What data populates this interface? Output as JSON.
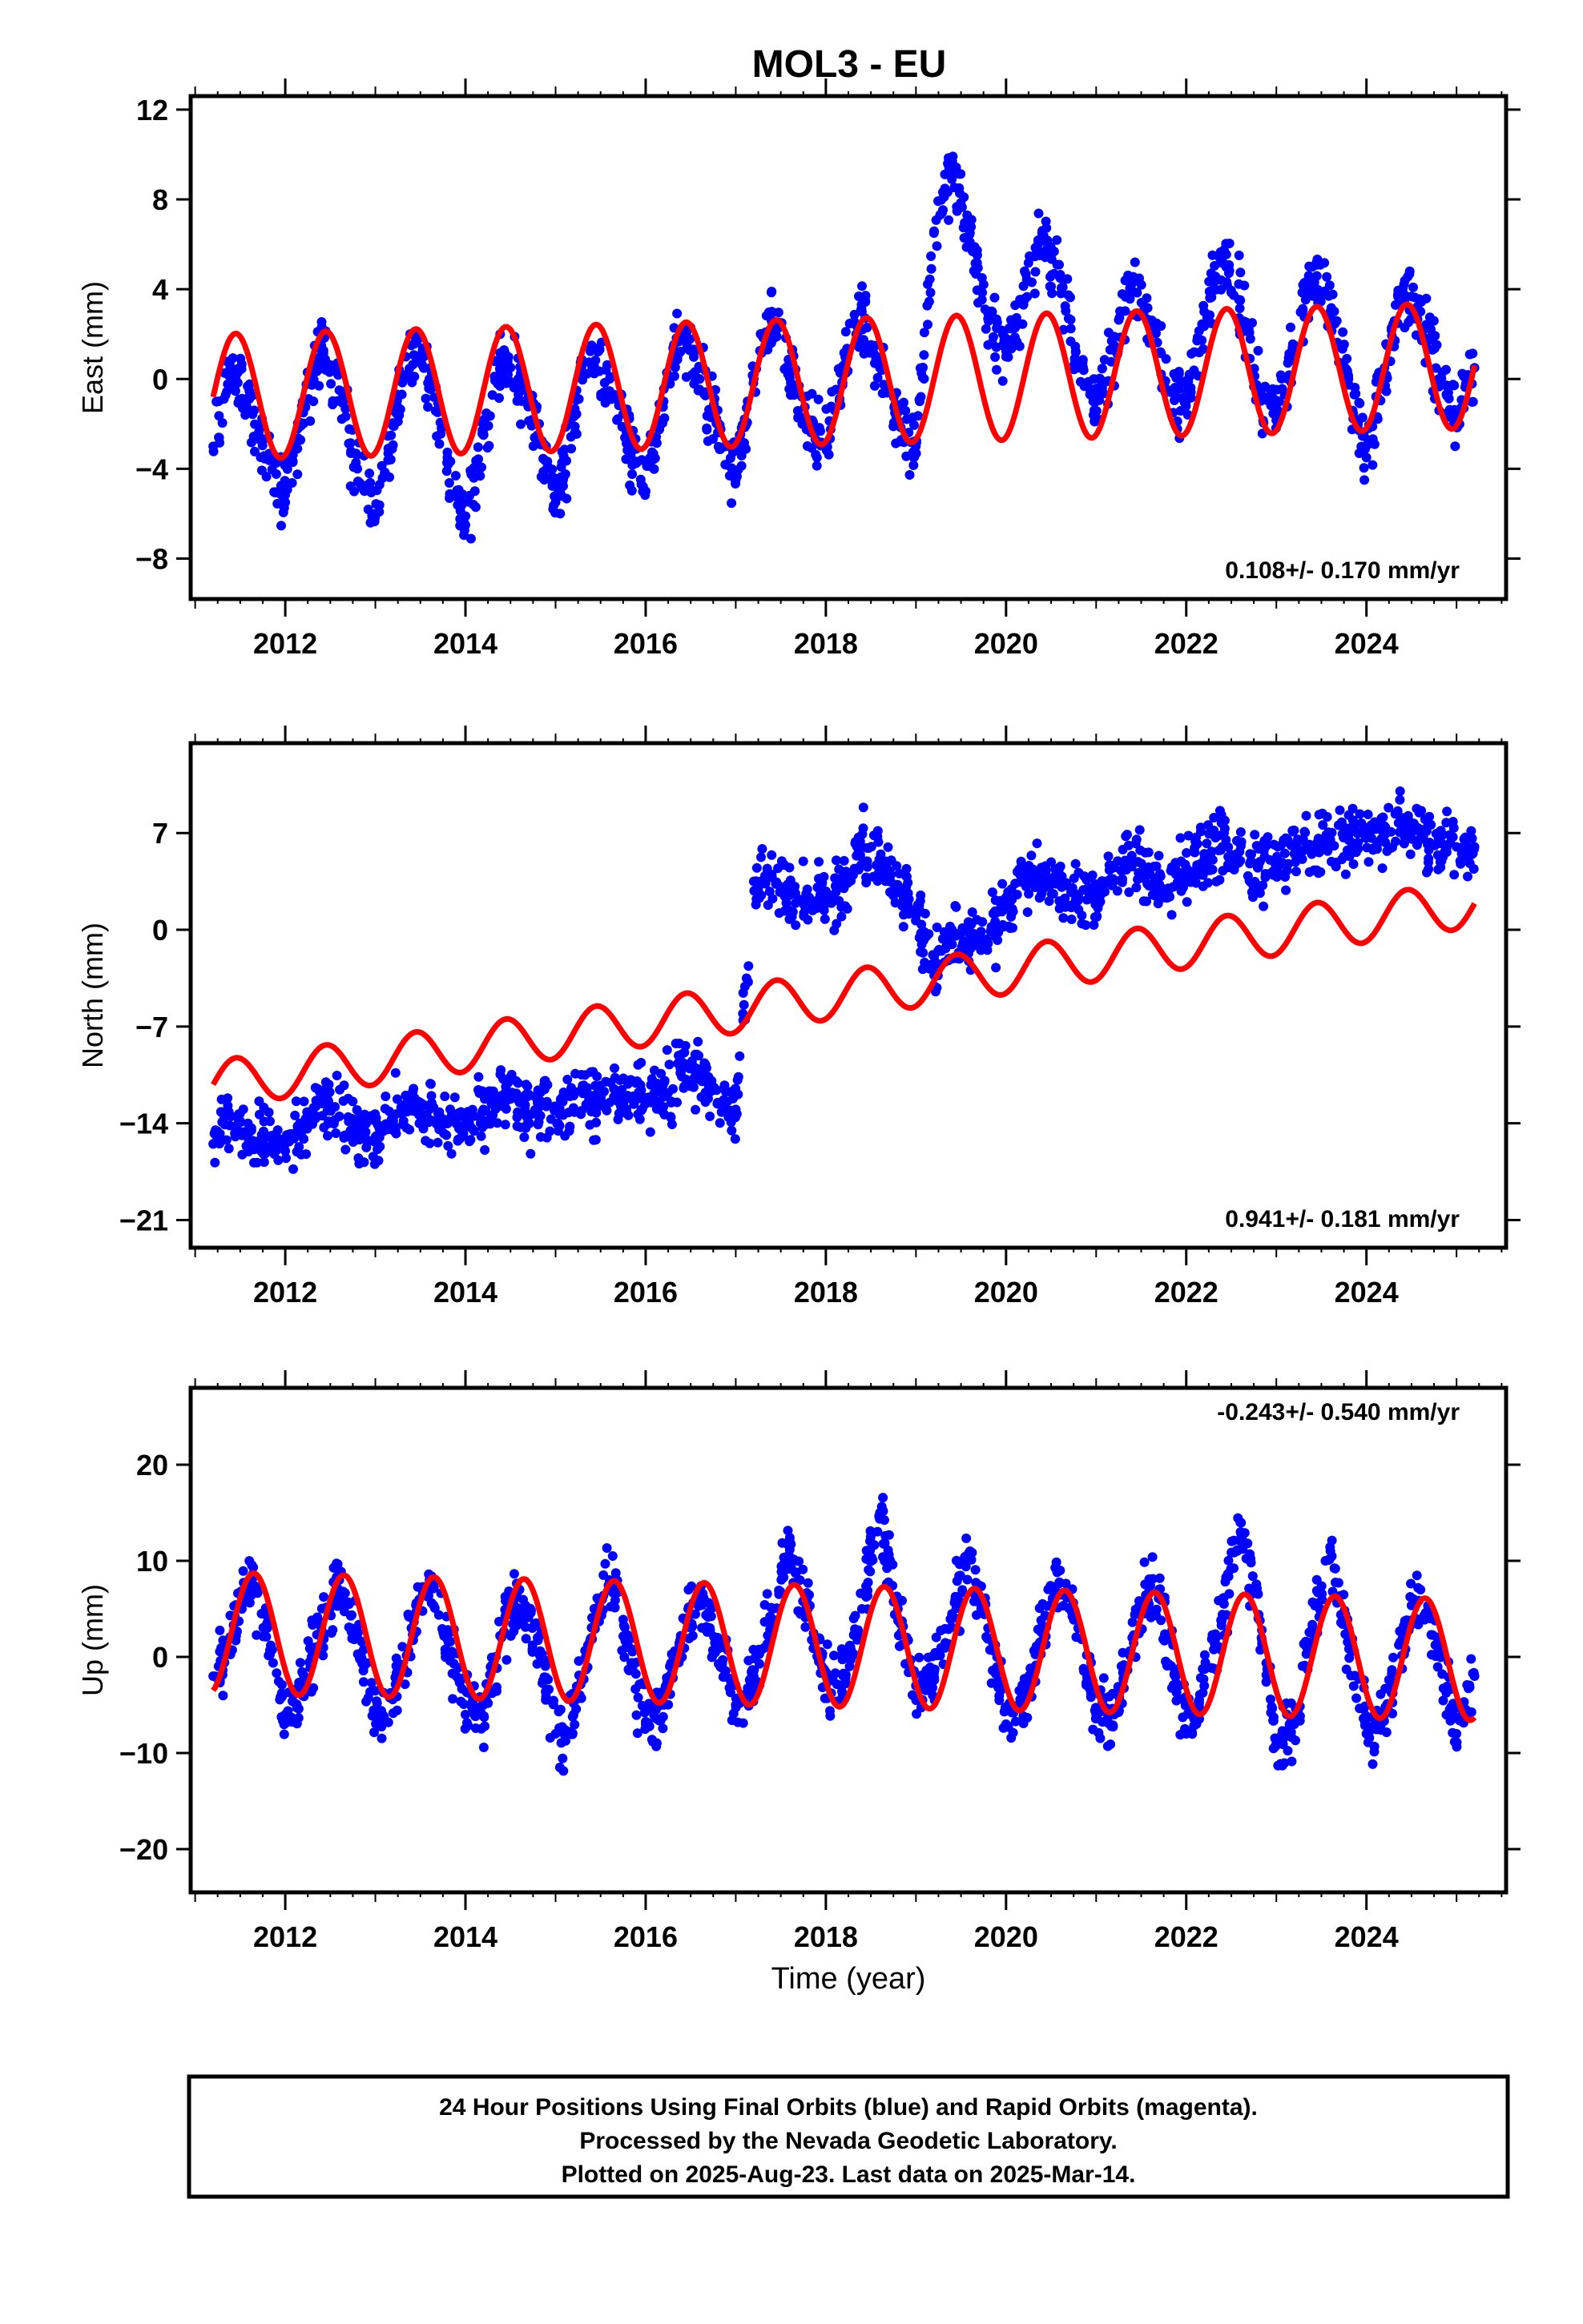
{
  "title": "MOL3 - EU",
  "footer": {
    "lines": [
      "24 Hour Positions Using Final Orbits (blue) and Rapid Orbits (magenta).",
      "Processed by the Nevada Geodetic Laboratory.",
      "Plotted on 2025-Aug-23. Last data on 2025-Mar-14."
    ]
  },
  "colors": {
    "data": "#0000ff",
    "model": "#ff0000",
    "frame": "#000000"
  },
  "chart_data": [
    {
      "type": "scatter",
      "ylabel": "East (mm)",
      "xlabel": "",
      "rate_label": "0.108+/- 0.170 mm/yr",
      "rate_position": "bottom-right",
      "xlim": [
        2010.95,
        2025.55
      ],
      "ylim": [
        -9.8,
        12.6
      ],
      "xticks": [
        2012,
        2014,
        2016,
        2018,
        2020,
        2022,
        2024
      ],
      "yticks": [
        12,
        8,
        4,
        0,
        -4,
        -8
      ],
      "ytick_labels": [
        "12",
        "8",
        "4",
        "0",
        "−4",
        "−8"
      ],
      "grid": false,
      "series": [
        {
          "role": "daily positions",
          "x": [
            2011.2,
            2011.4,
            2011.6,
            2011.8,
            2012.0,
            2012.2,
            2012.4,
            2012.6,
            2012.8,
            2013.0,
            2013.2,
            2013.4,
            2013.6,
            2013.8,
            2014.0,
            2014.2,
            2014.4,
            2014.6,
            2014.8,
            2015.0,
            2015.2,
            2015.4,
            2015.6,
            2015.8,
            2016.0,
            2016.2,
            2016.4,
            2016.6,
            2016.8,
            2017.0,
            2017.2,
            2017.4,
            2017.6,
            2017.8,
            2018.0,
            2018.2,
            2018.4,
            2018.6,
            2018.8,
            2019.0,
            2019.2,
            2019.4,
            2019.6,
            2019.8,
            2020.0,
            2020.2,
            2020.4,
            2020.6,
            2020.8,
            2021.0,
            2021.2,
            2021.4,
            2021.6,
            2021.8,
            2022.0,
            2022.2,
            2022.4,
            2022.6,
            2022.8,
            2023.0,
            2023.2,
            2023.4,
            2023.6,
            2023.8,
            2024.0,
            2024.2,
            2024.4,
            2024.6,
            2024.8,
            2025.0,
            2025.2
          ],
          "y": [
            -3.0,
            0.5,
            -0.8,
            -3.5,
            -5.5,
            -1.5,
            1.5,
            -0.5,
            -4.0,
            -6.0,
            -2.0,
            1.5,
            0.0,
            -3.5,
            -6.5,
            -2.5,
            1.0,
            0.0,
            -2.5,
            -5.5,
            -1.5,
            1.5,
            0.0,
            -2.5,
            -5.0,
            -1.0,
            2.0,
            0.0,
            -2.0,
            -4.5,
            0.0,
            3.0,
            0.5,
            -2.0,
            -3.0,
            0.5,
            3.0,
            0.5,
            -2.0,
            -3.0,
            6.5,
            9.5,
            6.5,
            3.0,
            1.0,
            3.5,
            6.5,
            4.5,
            0.5,
            -1.0,
            1.5,
            4.5,
            2.5,
            -0.5,
            -1.0,
            3.0,
            5.5,
            3.5,
            -0.5,
            -1.5,
            1.5,
            5.0,
            3.0,
            0.0,
            -3.5,
            0.5,
            4.0,
            3.0,
            0.0,
            -1.5,
            0.5
          ]
        },
        {
          "role": "seasonal model",
          "amplitude": 2.8,
          "phase_peak": 0.45,
          "offset_start": -0.8,
          "offset_end": 0.6
        }
      ]
    },
    {
      "type": "scatter",
      "ylabel": "North (mm)",
      "xlabel": "",
      "rate_label": "0.941+/- 0.181 mm/yr",
      "rate_position": "bottom-right",
      "xlim": [
        2010.95,
        2025.55
      ],
      "ylim": [
        -23.0,
        13.5
      ],
      "xticks": [
        2012,
        2014,
        2016,
        2018,
        2020,
        2022,
        2024
      ],
      "yticks": [
        7,
        0,
        -7,
        -14,
        -21
      ],
      "ytick_labels": [
        "7",
        "0",
        "−7",
        "−14",
        "−21"
      ],
      "grid": false,
      "series": [
        {
          "role": "daily positions",
          "x": [
            2011.2,
            2011.4,
            2011.6,
            2011.8,
            2012.0,
            2012.2,
            2012.4,
            2012.6,
            2012.8,
            2013.0,
            2013.2,
            2013.4,
            2013.6,
            2013.8,
            2014.0,
            2014.2,
            2014.4,
            2014.6,
            2014.8,
            2015.0,
            2015.2,
            2015.4,
            2015.6,
            2015.8,
            2016.0,
            2016.2,
            2016.4,
            2016.6,
            2016.8,
            2017.0,
            2017.2,
            2017.4,
            2017.6,
            2017.8,
            2018.0,
            2018.2,
            2018.4,
            2018.6,
            2018.8,
            2019.0,
            2019.2,
            2019.4,
            2019.6,
            2019.8,
            2020.0,
            2020.2,
            2020.4,
            2020.6,
            2020.8,
            2021.0,
            2021.2,
            2021.4,
            2021.6,
            2021.8,
            2022.0,
            2022.2,
            2022.4,
            2022.6,
            2022.8,
            2023.0,
            2023.2,
            2023.4,
            2023.6,
            2023.8,
            2024.0,
            2024.2,
            2024.4,
            2024.6,
            2024.8,
            2025.0,
            2025.2
          ],
          "y": [
            -15.5,
            -13.5,
            -14.5,
            -15.0,
            -16.0,
            -14.0,
            -12.0,
            -13.5,
            -14.5,
            -15.0,
            -13.5,
            -12.5,
            -13.0,
            -14.0,
            -14.0,
            -13.0,
            -12.0,
            -12.5,
            -12.5,
            -13.0,
            -12.0,
            -12.0,
            -12.5,
            -12.0,
            -12.5,
            -12.0,
            -10.0,
            -10.5,
            -12.5,
            -13.0,
            3.5,
            4.0,
            2.5,
            2.0,
            2.5,
            3.0,
            6.0,
            5.0,
            3.0,
            1.0,
            -2.5,
            0.0,
            -1.0,
            -1.0,
            2.0,
            4.0,
            3.5,
            3.5,
            2.5,
            2.5,
            4.5,
            5.0,
            4.0,
            3.0,
            4.5,
            5.5,
            6.0,
            5.0,
            4.5,
            5.0,
            5.5,
            6.0,
            6.5,
            6.5,
            7.0,
            7.5,
            7.0,
            7.0,
            6.5,
            6.0,
            6.0
          ]
        },
        {
          "role": "seasonal model",
          "amplitude": 1.7,
          "phase_peak": 0.45,
          "offset_start": -11.2,
          "offset_end": 1.9,
          "step_at": 2017.15,
          "step_size": 3.0
        }
      ]
    },
    {
      "type": "scatter",
      "ylabel": "Up (mm)",
      "xlabel": "Time (year)",
      "rate_label": "-0.243+/- 0.540 mm/yr",
      "rate_position": "top-right",
      "xlim": [
        2010.95,
        2025.55
      ],
      "ylim": [
        -24.5,
        28.0
      ],
      "xticks": [
        2012,
        2014,
        2016,
        2018,
        2020,
        2022,
        2024
      ],
      "yticks": [
        20,
        10,
        0,
        -10,
        -20
      ],
      "ytick_labels": [
        "20",
        "10",
        "0",
        "−10",
        "−20"
      ],
      "grid": false,
      "series": [
        {
          "role": "daily positions",
          "x": [
            2011.2,
            2011.4,
            2011.6,
            2011.8,
            2012.0,
            2012.2,
            2012.4,
            2012.6,
            2012.8,
            2013.0,
            2013.2,
            2013.4,
            2013.6,
            2013.8,
            2014.0,
            2014.2,
            2014.4,
            2014.6,
            2014.8,
            2015.0,
            2015.2,
            2015.4,
            2015.6,
            2015.8,
            2016.0,
            2016.2,
            2016.4,
            2016.6,
            2016.8,
            2017.0,
            2017.2,
            2017.4,
            2017.6,
            2017.8,
            2018.0,
            2018.2,
            2018.4,
            2018.6,
            2018.8,
            2019.0,
            2019.2,
            2019.4,
            2019.6,
            2019.8,
            2020.0,
            2020.2,
            2020.4,
            2020.6,
            2020.8,
            2021.0,
            2021.2,
            2021.4,
            2021.6,
            2021.8,
            2022.0,
            2022.2,
            2022.4,
            2022.6,
            2022.8,
            2023.0,
            2023.2,
            2023.4,
            2023.6,
            2023.8,
            2024.0,
            2024.2,
            2024.4,
            2024.6,
            2024.8,
            2025.0,
            2025.2
          ],
          "y": [
            -2.0,
            2.0,
            8.0,
            3.0,
            -6.0,
            -3.0,
            3.0,
            8.0,
            2.0,
            -6.0,
            -4.0,
            3.0,
            8.0,
            2.0,
            -6.0,
            -5.0,
            2.0,
            7.0,
            2.0,
            -8.0,
            -6.0,
            2.0,
            8.0,
            1.0,
            -7.0,
            -5.0,
            2.0,
            6.0,
            2.0,
            -5.0,
            -2.0,
            4.0,
            12.0,
            5.0,
            -3.0,
            -2.0,
            5.0,
            15.0,
            5.0,
            -3.0,
            -2.0,
            4.0,
            11.0,
            3.0,
            -7.0,
            -4.0,
            3.0,
            9.0,
            3.0,
            -6.0,
            -6.0,
            2.0,
            8.0,
            2.0,
            -8.0,
            -3.0,
            4.0,
            14.0,
            4.0,
            -9.0,
            -7.0,
            3.0,
            11.0,
            2.0,
            -8.0,
            -6.0,
            2.0,
            7.0,
            1.0,
            -8.0,
            -2.0
          ]
        },
        {
          "role": "seasonal model",
          "amplitude": 6.3,
          "phase_peak": 0.65,
          "offset_start": 2.5,
          "offset_end": -0.3
        }
      ]
    }
  ]
}
